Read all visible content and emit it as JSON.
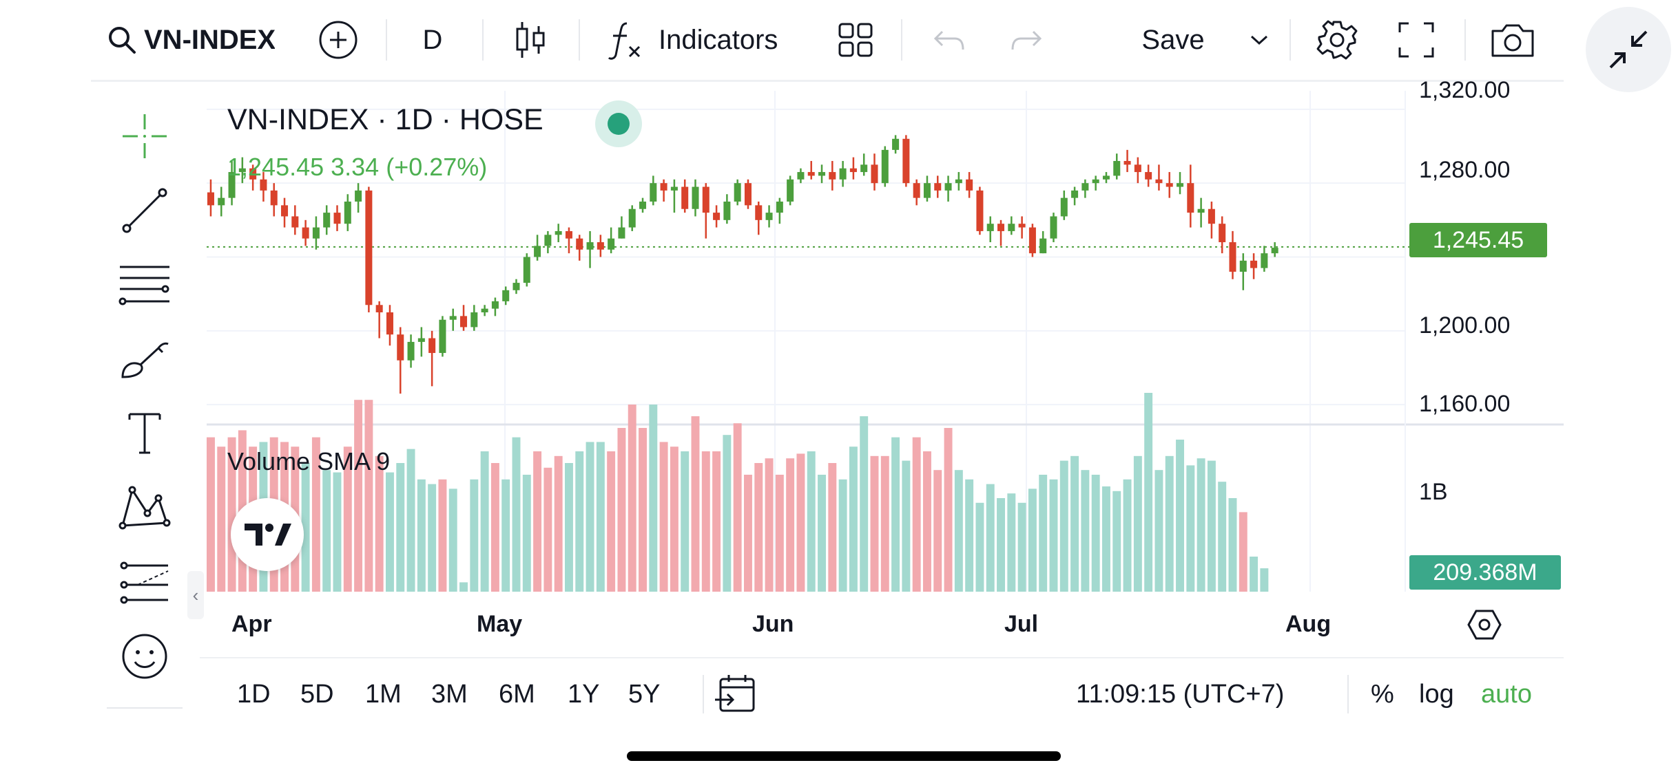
{
  "toolbar": {
    "symbol": "VN-INDEX",
    "interval": "D",
    "indicators_label": "Indicators",
    "save_label": "Save"
  },
  "legend": {
    "title": "VN-INDEX · 1D · HOSE",
    "price_line": "1,245.45  3.34 (+0.27%)"
  },
  "volume": {
    "label": "Volume SMA 9",
    "current": "209.368M"
  },
  "price_axis": {
    "labels": [
      "1,320.00",
      "1,280.00",
      "1,200.00",
      "1,160.00"
    ],
    "current": "1,245.45"
  },
  "volume_axis": {
    "labels": [
      "1B"
    ]
  },
  "time_axis": {
    "labels": [
      "Apr",
      "May",
      "Jun",
      "Jul",
      "Aug"
    ]
  },
  "ranges": [
    "1D",
    "5D",
    "1M",
    "3M",
    "6M",
    "1Y",
    "5Y"
  ],
  "status": {
    "clock": "11:09:15 (UTC+7)",
    "percent": "%",
    "log": "log",
    "auto": "auto"
  },
  "colors": {
    "up": "#4c9f3d",
    "down": "#d9422b",
    "vol_up": "#a3d9cf",
    "vol_down": "#f2a9ae",
    "accent": "#4caf50"
  },
  "chart_data": {
    "type": "candlestick",
    "ylim": [
      1150,
      1330
    ],
    "x_labels": [
      "Apr",
      "May",
      "Jun",
      "Jul",
      "Aug"
    ],
    "candles": [
      [
        1275,
        1268,
        1282,
        1262
      ],
      [
        1268,
        1272,
        1278,
        1262
      ],
      [
        1272,
        1286,
        1292,
        1268
      ],
      [
        1286,
        1288,
        1294,
        1280
      ],
      [
        1288,
        1282,
        1290,
        1276
      ],
      [
        1282,
        1276,
        1286,
        1270
      ],
      [
        1276,
        1268,
        1280,
        1262
      ],
      [
        1268,
        1262,
        1272,
        1256
      ],
      [
        1262,
        1256,
        1268,
        1252
      ],
      [
        1256,
        1250,
        1260,
        1246
      ],
      [
        1250,
        1256,
        1262,
        1244
      ],
      [
        1256,
        1264,
        1268,
        1252
      ],
      [
        1264,
        1258,
        1268,
        1254
      ],
      [
        1258,
        1270,
        1274,
        1254
      ],
      [
        1270,
        1276,
        1280,
        1264
      ],
      [
        1276,
        1214,
        1278,
        1210
      ],
      [
        1214,
        1210,
        1216,
        1196
      ],
      [
        1210,
        1198,
        1214,
        1192
      ],
      [
        1198,
        1184,
        1202,
        1166
      ],
      [
        1184,
        1194,
        1198,
        1180
      ],
      [
        1194,
        1196,
        1202,
        1186
      ],
      [
        1196,
        1188,
        1200,
        1170
      ],
      [
        1188,
        1206,
        1208,
        1186
      ],
      [
        1206,
        1208,
        1212,
        1200
      ],
      [
        1208,
        1202,
        1214,
        1200
      ],
      [
        1202,
        1210,
        1214,
        1200
      ],
      [
        1210,
        1212,
        1214,
        1208
      ],
      [
        1212,
        1216,
        1218,
        1208
      ],
      [
        1216,
        1222,
        1224,
        1214
      ],
      [
        1222,
        1226,
        1228,
        1220
      ],
      [
        1226,
        1240,
        1242,
        1224
      ],
      [
        1240,
        1246,
        1252,
        1238
      ],
      [
        1246,
        1252,
        1254,
        1242
      ],
      [
        1252,
        1254,
        1258,
        1248
      ],
      [
        1254,
        1250,
        1256,
        1242
      ],
      [
        1250,
        1244,
        1252,
        1238
      ],
      [
        1244,
        1248,
        1254,
        1234
      ],
      [
        1248,
        1244,
        1252,
        1240
      ],
      [
        1244,
        1250,
        1256,
        1242
      ],
      [
        1250,
        1256,
        1262,
        1250
      ],
      [
        1256,
        1266,
        1268,
        1254
      ],
      [
        1266,
        1270,
        1272,
        1264
      ],
      [
        1270,
        1280,
        1284,
        1268
      ],
      [
        1280,
        1276,
        1282,
        1270
      ],
      [
        1276,
        1278,
        1282,
        1264
      ],
      [
        1278,
        1266,
        1282,
        1264
      ],
      [
        1266,
        1278,
        1282,
        1262
      ],
      [
        1278,
        1264,
        1280,
        1250
      ],
      [
        1264,
        1260,
        1268,
        1256
      ],
      [
        1260,
        1270,
        1274,
        1258
      ],
      [
        1270,
        1280,
        1282,
        1268
      ],
      [
        1280,
        1268,
        1282,
        1266
      ],
      [
        1268,
        1260,
        1270,
        1252
      ],
      [
        1260,
        1264,
        1268,
        1256
      ],
      [
        1264,
        1270,
        1272,
        1258
      ],
      [
        1270,
        1282,
        1284,
        1268
      ],
      [
        1282,
        1286,
        1288,
        1280
      ],
      [
        1286,
        1284,
        1292,
        1282
      ],
      [
        1284,
        1286,
        1290,
        1280
      ],
      [
        1286,
        1282,
        1292,
        1276
      ],
      [
        1282,
        1288,
        1292,
        1278
      ],
      [
        1288,
        1286,
        1294,
        1282
      ],
      [
        1286,
        1290,
        1296,
        1284
      ],
      [
        1290,
        1280,
        1296,
        1276
      ],
      [
        1280,
        1298,
        1300,
        1278
      ],
      [
        1298,
        1304,
        1306,
        1296
      ],
      [
        1304,
        1280,
        1306,
        1278
      ],
      [
        1280,
        1272,
        1282,
        1268
      ],
      [
        1272,
        1280,
        1284,
        1270
      ],
      [
        1280,
        1276,
        1284,
        1272
      ],
      [
        1276,
        1280,
        1284,
        1270
      ],
      [
        1280,
        1282,
        1286,
        1276
      ],
      [
        1282,
        1276,
        1286,
        1272
      ],
      [
        1276,
        1254,
        1278,
        1252
      ],
      [
        1254,
        1258,
        1262,
        1248
      ],
      [
        1258,
        1254,
        1260,
        1246
      ],
      [
        1254,
        1258,
        1262,
        1252
      ],
      [
        1258,
        1256,
        1262,
        1250
      ],
      [
        1256,
        1242,
        1258,
        1240
      ],
      [
        1242,
        1250,
        1254,
        1242
      ],
      [
        1250,
        1262,
        1264,
        1248
      ],
      [
        1262,
        1272,
        1276,
        1260
      ],
      [
        1272,
        1276,
        1278,
        1268
      ],
      [
        1276,
        1280,
        1282,
        1272
      ],
      [
        1280,
        1282,
        1284,
        1276
      ],
      [
        1282,
        1284,
        1286,
        1280
      ],
      [
        1284,
        1292,
        1296,
        1282
      ],
      [
        1292,
        1290,
        1298,
        1286
      ],
      [
        1290,
        1286,
        1294,
        1280
      ],
      [
        1286,
        1282,
        1290,
        1278
      ],
      [
        1282,
        1280,
        1290,
        1276
      ],
      [
        1280,
        1278,
        1286,
        1272
      ],
      [
        1278,
        1280,
        1286,
        1274
      ],
      [
        1280,
        1264,
        1290,
        1256
      ],
      [
        1264,
        1266,
        1272,
        1256
      ],
      [
        1266,
        1258,
        1270,
        1250
      ],
      [
        1258,
        1248,
        1262,
        1242
      ],
      [
        1248,
        1232,
        1254,
        1228
      ],
      [
        1232,
        1238,
        1242,
        1222
      ],
      [
        1238,
        1234,
        1242,
        1228
      ],
      [
        1234,
        1242,
        1246,
        1232
      ],
      [
        1242,
        1245,
        1248,
        1240
      ]
    ],
    "volume_down_flags": [
      1,
      1,
      1,
      1,
      1,
      0,
      1,
      1,
      1,
      0,
      1,
      0,
      0,
      1,
      1,
      1,
      1,
      0,
      0,
      0,
      0,
      0,
      1,
      0,
      0,
      0,
      0,
      1,
      0,
      0,
      0,
      1,
      1,
      1,
      0,
      0,
      0,
      0,
      1,
      1,
      1,
      1,
      0,
      1,
      1,
      0,
      1,
      1,
      1,
      0,
      1,
      1,
      1,
      1,
      1,
      1,
      1,
      0,
      0,
      1,
      0,
      0,
      0,
      1,
      1,
      0,
      0,
      1,
      1,
      1,
      1,
      0,
      0,
      0,
      0,
      0,
      0,
      0,
      0,
      0,
      0,
      0,
      0,
      0,
      0,
      0,
      0,
      0,
      0,
      0,
      0,
      0,
      0,
      0,
      0,
      0,
      0,
      0,
      1,
      0,
      0
    ],
    "volumes": [
      0.66,
      0.62,
      0.66,
      0.69,
      0.62,
      0.64,
      0.66,
      0.64,
      0.62,
      0.55,
      0.66,
      0.52,
      0.51,
      0.62,
      0.82,
      0.82,
      0.58,
      0.51,
      0.55,
      0.61,
      0.48,
      0.46,
      0.48,
      0.44,
      0.04,
      0.48,
      0.6,
      0.55,
      0.48,
      0.66,
      0.5,
      0.6,
      0.53,
      0.58,
      0.55,
      0.6,
      0.64,
      0.64,
      0.6,
      0.7,
      0.8,
      0.7,
      0.8,
      0.64,
      0.62,
      0.6,
      0.75,
      0.6,
      0.6,
      0.67,
      0.72,
      0.5,
      0.55,
      0.57,
      0.5,
      0.57,
      0.59,
      0.6,
      0.5,
      0.55,
      0.48,
      0.62,
      0.75,
      0.58,
      0.58,
      0.66,
      0.56,
      0.66,
      0.6,
      0.52,
      0.7,
      0.52,
      0.48,
      0.38,
      0.46,
      0.4,
      0.42,
      0.38,
      0.44,
      0.5,
      0.48,
      0.56,
      0.58,
      0.52,
      0.5,
      0.45,
      0.43,
      0.48,
      0.58,
      0.85,
      0.52,
      0.58,
      0.65,
      0.54,
      0.57,
      0.56,
      0.47,
      0.4,
      0.34,
      0.15,
      0.1
    ]
  }
}
